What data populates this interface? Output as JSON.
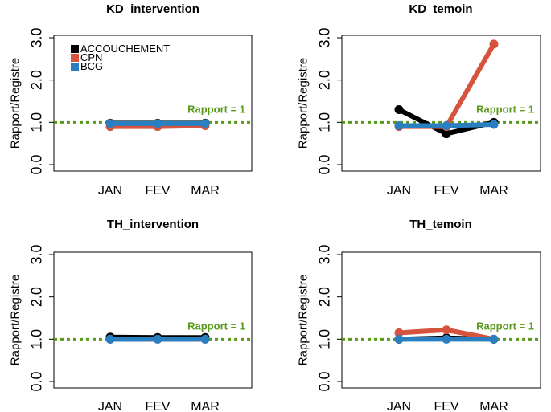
{
  "colors": {
    "ACCOUCHEMENT": "#000000",
    "CPN": "#d6533e",
    "BCG": "#2a7fc0",
    "reference": "#5a9a1a"
  },
  "chart_data": [
    {
      "type": "line",
      "title": "KD_intervention",
      "ylabel": "Rapport/Registre",
      "categories": [
        "JAN",
        "FEV",
        "MAR"
      ],
      "ylim": [
        0,
        3
      ],
      "yticks": [
        "0.0",
        "1.0",
        "2.0",
        "3.0"
      ],
      "reference_line": {
        "value": 1.0,
        "label": "Rapport = 1"
      },
      "legend": {
        "position": "top-left",
        "entries": [
          "ACCOUCHEMENT",
          "CPN",
          "BCG"
        ]
      },
      "series": [
        {
          "name": "ACCOUCHEMENT",
          "values": [
            0.98,
            0.98,
            0.98
          ]
        },
        {
          "name": "CPN",
          "values": [
            0.9,
            0.9,
            0.92
          ]
        },
        {
          "name": "BCG",
          "values": [
            0.97,
            0.97,
            0.97
          ]
        }
      ]
    },
    {
      "type": "line",
      "title": "KD_temoin",
      "ylabel": "Rapport/Registre",
      "categories": [
        "JAN",
        "FEV",
        "MAR"
      ],
      "ylim": [
        0,
        3
      ],
      "yticks": [
        "0.0",
        "1.0",
        "2.0",
        "3.0"
      ],
      "reference_line": {
        "value": 1.0,
        "label": "Rapport = 1"
      },
      "series": [
        {
          "name": "ACCOUCHEMENT",
          "values": [
            1.3,
            0.73,
            1.0
          ]
        },
        {
          "name": "CPN",
          "values": [
            0.9,
            0.9,
            2.85
          ]
        },
        {
          "name": "BCG",
          "values": [
            0.92,
            0.92,
            0.95
          ]
        }
      ]
    },
    {
      "type": "line",
      "title": "TH_intervention",
      "ylabel": "Rapport/Registre",
      "categories": [
        "JAN",
        "FEV",
        "MAR"
      ],
      "ylim": [
        0,
        3
      ],
      "yticks": [
        "0.0",
        "1.0",
        "2.0",
        "3.0"
      ],
      "reference_line": {
        "value": 1.0,
        "label": "Rapport = 1"
      },
      "series": [
        {
          "name": "ACCOUCHEMENT",
          "values": [
            1.05,
            1.04,
            1.04
          ]
        },
        {
          "name": "CPN",
          "values": [
            1.0,
            1.0,
            1.0
          ]
        },
        {
          "name": "BCG",
          "values": [
            1.0,
            1.0,
            1.0
          ]
        }
      ]
    },
    {
      "type": "line",
      "title": "TH_temoin",
      "ylabel": "Rapport/Registre",
      "categories": [
        "JAN",
        "FEV",
        "MAR"
      ],
      "ylim": [
        0,
        3
      ],
      "yticks": [
        "0.0",
        "1.0",
        "2.0",
        "3.0"
      ],
      "reference_line": {
        "value": 1.0,
        "label": "Rapport = 1"
      },
      "series": [
        {
          "name": "ACCOUCHEMENT",
          "values": [
            1.0,
            1.03,
            1.0
          ]
        },
        {
          "name": "CPN",
          "values": [
            1.15,
            1.22,
            1.0
          ]
        },
        {
          "name": "BCG",
          "values": [
            1.0,
            1.0,
            1.0
          ]
        }
      ]
    }
  ]
}
